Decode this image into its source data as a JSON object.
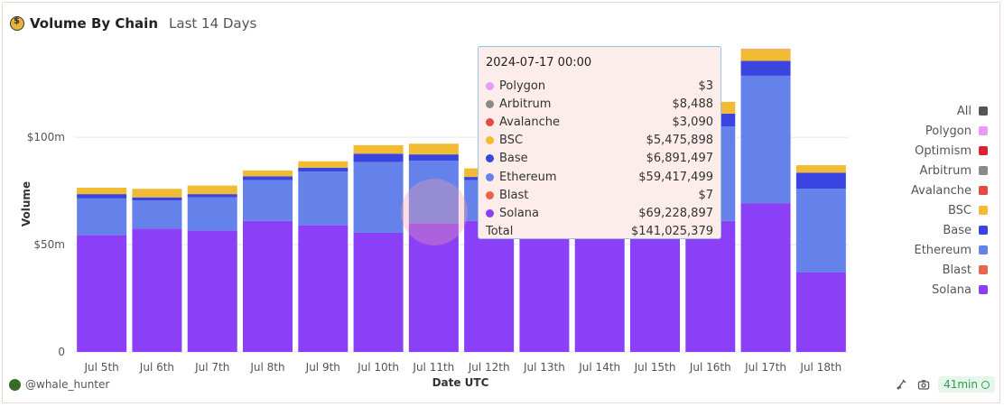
{
  "header": {
    "title": "Volume By Chain",
    "subtitle": "Last 14 Days"
  },
  "chart_data": {
    "type": "bar",
    "stacked": true,
    "xlabel": "Date UTC",
    "ylabel": "Volume",
    "ylim": [
      0,
      145000000
    ],
    "yticks": [
      {
        "value": 0,
        "label": "0"
      },
      {
        "value": 50000000,
        "label": "$50m"
      },
      {
        "value": 100000000,
        "label": "$100m"
      }
    ],
    "categories": [
      "Jul 5th",
      "Jul 6th",
      "Jul 7th",
      "Jul 8th",
      "Jul 9th",
      "Jul 10th",
      "Jul 11th",
      "Jul 12th",
      "Jul 13th",
      "Jul 14th",
      "Jul 15th",
      "Jul 16th",
      "Jul 17th",
      "Jul 18th"
    ],
    "series": [
      {
        "name": "Solana",
        "color": "#8b3ff7",
        "values": [
          54500000,
          57500000,
          56500000,
          61000000,
          59000000,
          55500000,
          60000000,
          61000000,
          60000000,
          59000000,
          61000000,
          61000000,
          69228897,
          37000000
        ]
      },
      {
        "name": "Blast",
        "color": "#e8644a",
        "values": [
          0,
          0,
          0,
          0,
          0,
          0,
          0,
          0,
          0,
          0,
          0,
          0,
          7,
          0
        ]
      },
      {
        "name": "Ethereum",
        "color": "#6581ea",
        "values": [
          17000000,
          13000000,
          15500000,
          19000000,
          25000000,
          33000000,
          29000000,
          19000000,
          30000000,
          30000000,
          32000000,
          44000000,
          59417499,
          39000000
        ]
      },
      {
        "name": "Base",
        "color": "#3a44e0",
        "values": [
          2000000,
          1500000,
          1500000,
          1800000,
          1800000,
          3800000,
          3000000,
          1500000,
          5000000,
          5000000,
          5500000,
          6000000,
          6891497,
          7500000
        ]
      },
      {
        "name": "BSC",
        "color": "#f1bb34",
        "values": [
          3000000,
          4000000,
          4000000,
          2700000,
          3000000,
          4000000,
          5000000,
          4000000,
          8000000,
          8000000,
          8000000,
          5500000,
          5475898,
          3500000
        ]
      },
      {
        "name": "Avalanche",
        "color": "#e34a40",
        "values": [
          0,
          0,
          0,
          0,
          0,
          0,
          0,
          0,
          0,
          0,
          0,
          0,
          3090,
          0
        ]
      },
      {
        "name": "Arbitrum",
        "color": "#8a8a8a",
        "values": [
          0,
          0,
          0,
          0,
          0,
          0,
          0,
          0,
          0,
          0,
          0,
          0,
          8488,
          0
        ]
      },
      {
        "name": "Optimism",
        "color": "#e02030",
        "values": [
          0,
          0,
          0,
          0,
          0,
          0,
          0,
          0,
          0,
          0,
          0,
          0,
          0,
          0
        ]
      },
      {
        "name": "Polygon",
        "color": "#e89af5",
        "values": [
          0,
          0,
          0,
          0,
          0,
          0,
          0,
          0,
          0,
          0,
          0,
          0,
          3,
          0
        ]
      }
    ]
  },
  "legend": {
    "items": [
      {
        "label": "All",
        "color": "#555555"
      },
      {
        "label": "Polygon",
        "color": "#e89af5"
      },
      {
        "label": "Optimism",
        "color": "#e02030"
      },
      {
        "label": "Arbitrum",
        "color": "#8a8a8a"
      },
      {
        "label": "Avalanche",
        "color": "#e34a40"
      },
      {
        "label": "BSC",
        "color": "#f1bb34"
      },
      {
        "label": "Base",
        "color": "#3a44e0"
      },
      {
        "label": "Ethereum",
        "color": "#6581ea"
      },
      {
        "label": "Blast",
        "color": "#e8644a"
      },
      {
        "label": "Solana",
        "color": "#8b3ff7"
      }
    ]
  },
  "tooltip": {
    "date": "2024-07-17 00:00",
    "rows": [
      {
        "name": "Polygon",
        "value": "$3",
        "color": "#e89af5"
      },
      {
        "name": "Arbitrum",
        "value": "$8,488",
        "color": "#8a8a8a"
      },
      {
        "name": "Avalanche",
        "value": "$3,090",
        "color": "#e34a40"
      },
      {
        "name": "BSC",
        "value": "$5,475,898",
        "color": "#f1bb34"
      },
      {
        "name": "Base",
        "value": "$6,891,497",
        "color": "#3a44e0"
      },
      {
        "name": "Ethereum",
        "value": "$59,417,499",
        "color": "#6581ea"
      },
      {
        "name": "Blast",
        "value": "$7",
        "color": "#e8644a"
      },
      {
        "name": "Solana",
        "value": "$69,228,897",
        "color": "#8b3ff7"
      }
    ],
    "total_label": "Total",
    "total_value": "$141,025,379"
  },
  "footer": {
    "user": "@whale_hunter",
    "refresh": "41min"
  }
}
